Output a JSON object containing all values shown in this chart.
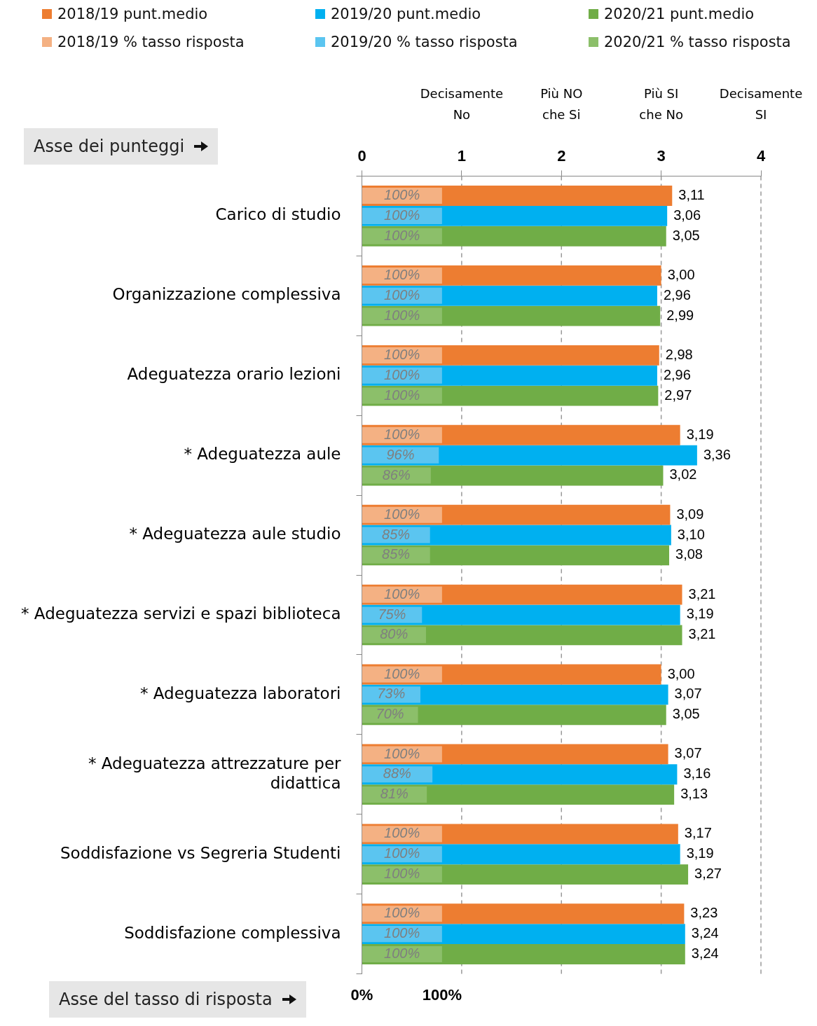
{
  "chart_data": {
    "type": "bar",
    "orientation": "horizontal",
    "categories": [
      "Carico di studio",
      "Organizzazione complessiva",
      "Adeguatezza orario lezioni",
      "* Adeguatezza aule",
      "* Adeguatezza aule studio",
      "* Adeguatezza servizi e spazi biblioteca",
      "* Adeguatezza laboratori",
      "* Adeguatezza attrezzature per\ndidattica",
      "Soddisfazione vs Segreria Studenti",
      "Soddisfazione complessiva"
    ],
    "series": [
      {
        "name": "2018/19 punt.medio",
        "color": "#ed7d31",
        "values": [
          3.11,
          3.0,
          2.98,
          3.19,
          3.09,
          3.21,
          3.0,
          3.07,
          3.17,
          3.23
        ],
        "value_labels": [
          "3,11",
          "3,00",
          "2,98",
          "3,19",
          "3,09",
          "3,21",
          "3,00",
          "3,07",
          "3,17",
          "3,23"
        ]
      },
      {
        "name": "2019/20 punt.medio",
        "color": "#00b0f0",
        "values": [
          3.06,
          2.96,
          2.96,
          3.36,
          3.1,
          3.19,
          3.07,
          3.16,
          3.19,
          3.24
        ],
        "value_labels": [
          "3,06",
          "2,96",
          "2,96",
          "3,36",
          "3,10",
          "3,19",
          "3,07",
          "3,16",
          "3,19",
          "3,24"
        ]
      },
      {
        "name": "2020/21 punt.medio",
        "color": "#70ad47",
        "values": [
          3.05,
          2.99,
          2.97,
          3.02,
          3.08,
          3.21,
          3.05,
          3.13,
          3.27,
          3.24
        ],
        "value_labels": [
          "3,05",
          "2,99",
          "2,97",
          "3,02",
          "3,08",
          "3,21",
          "3,05",
          "3,13",
          "3,27",
          "3,24"
        ]
      },
      {
        "name": "2018/19 % tasso risposta",
        "color": "#f4b183",
        "axis": "x2",
        "values": [
          100,
          100,
          100,
          100,
          100,
          100,
          100,
          100,
          100,
          100
        ],
        "value_labels": [
          "100%",
          "100%",
          "100%",
          "100%",
          "100%",
          "100%",
          "100%",
          "100%",
          "100%",
          "100%"
        ]
      },
      {
        "name": "2019/20 % tasso risposta",
        "color": "#5bc5f0",
        "axis": "x2",
        "values": [
          100,
          100,
          100,
          96,
          85,
          75,
          73,
          88,
          100,
          100
        ],
        "value_labels": [
          "100%",
          "100%",
          "100%",
          "96%",
          "85%",
          "75%",
          "73%",
          "88%",
          "100%",
          "100%"
        ]
      },
      {
        "name": "2020/21 % tasso risposta",
        "color": "#8cbf6a",
        "axis": "x2",
        "values": [
          100,
          100,
          100,
          86,
          85,
          80,
          70,
          81,
          100,
          100
        ],
        "value_labels": [
          "100%",
          "100%",
          "100%",
          "86%",
          "85%",
          "80%",
          "70%",
          "81%",
          "100%",
          "100%"
        ]
      }
    ],
    "xlim": [
      0,
      4
    ],
    "xticks": [
      0,
      1,
      2,
      3,
      4
    ],
    "x2lim": [
      0,
      498
    ],
    "x2ticks": [
      {
        "value": 0,
        "label": "0%"
      },
      {
        "value": 100,
        "label": "100%"
      }
    ],
    "grid": "x",
    "legend": "top",
    "annotations": [
      "Asse dei punteggi",
      "Asse del tasso di risposta",
      "Decisamente No",
      "Più NO che Si",
      "Più SI che No",
      "Decisamente SI"
    ]
  }
}
